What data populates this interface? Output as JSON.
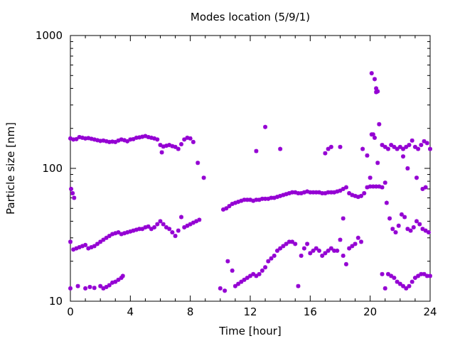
{
  "chart_data": {
    "type": "scatter",
    "title": "Modes location (5/9/1)",
    "xlabel": "Time [hour]",
    "ylabel": "Particle size [nm]",
    "xlim": [
      0,
      24
    ],
    "ylim": [
      10,
      1000
    ],
    "yscale": "log",
    "xticks": [
      "0",
      "4",
      "8",
      "12",
      "16",
      "20",
      "24"
    ],
    "yticks": [
      "10",
      "100",
      "1000"
    ],
    "grid": false,
    "marker_color": "#9400d3",
    "series": [
      {
        "points": [
          [
            0.0,
            168
          ],
          [
            0.2,
            165
          ],
          [
            0.4,
            166
          ],
          [
            0.6,
            172
          ],
          [
            0.8,
            170
          ],
          [
            1.0,
            168
          ],
          [
            1.2,
            169
          ],
          [
            1.4,
            167
          ],
          [
            1.6,
            165
          ],
          [
            1.8,
            163
          ],
          [
            2.0,
            161
          ],
          [
            2.2,
            162
          ],
          [
            2.4,
            160
          ],
          [
            2.6,
            158
          ],
          [
            2.8,
            159
          ],
          [
            3.0,
            158
          ],
          [
            3.2,
            162
          ],
          [
            3.4,
            165
          ],
          [
            3.6,
            163
          ],
          [
            3.8,
            160
          ],
          [
            4.0,
            165
          ],
          [
            4.2,
            166
          ],
          [
            4.4,
            170
          ],
          [
            4.6,
            171
          ],
          [
            4.8,
            173
          ],
          [
            5.0,
            175
          ],
          [
            5.2,
            172
          ],
          [
            5.4,
            170
          ],
          [
            5.6,
            168
          ],
          [
            5.8,
            165
          ],
          [
            6.0,
            150
          ],
          [
            6.1,
            132
          ],
          [
            6.2,
            146
          ],
          [
            6.4,
            148
          ],
          [
            6.6,
            150
          ],
          [
            6.8,
            147
          ],
          [
            7.0,
            145
          ],
          [
            7.2,
            140
          ],
          [
            7.4,
            152
          ],
          [
            7.6,
            165
          ],
          [
            7.8,
            170
          ],
          [
            8.0,
            168
          ],
          [
            8.2,
            158
          ],
          [
            8.5,
            110
          ],
          [
            8.9,
            85
          ],
          [
            0.0,
            28
          ],
          [
            0.2,
            24.5
          ],
          [
            0.4,
            25
          ],
          [
            0.6,
            25.5
          ],
          [
            0.8,
            26
          ],
          [
            1.0,
            26.5
          ],
          [
            1.2,
            25
          ],
          [
            1.4,
            25.5
          ],
          [
            1.6,
            26
          ],
          [
            1.8,
            27
          ],
          [
            2.0,
            28
          ],
          [
            2.2,
            29
          ],
          [
            2.4,
            30
          ],
          [
            2.6,
            31
          ],
          [
            2.8,
            32
          ],
          [
            3.0,
            32.5
          ],
          [
            3.2,
            33
          ],
          [
            3.4,
            32
          ],
          [
            3.6,
            32.5
          ],
          [
            3.8,
            33
          ],
          [
            4.0,
            33.5
          ],
          [
            4.2,
            34
          ],
          [
            4.4,
            34.5
          ],
          [
            4.6,
            35
          ],
          [
            4.8,
            35
          ],
          [
            5.0,
            36
          ],
          [
            5.2,
            36.5
          ],
          [
            5.4,
            35
          ],
          [
            5.6,
            36
          ],
          [
            5.8,
            38
          ],
          [
            6.0,
            40
          ],
          [
            6.2,
            38
          ],
          [
            6.4,
            36
          ],
          [
            6.6,
            35
          ],
          [
            6.8,
            33
          ],
          [
            7.0,
            31
          ],
          [
            7.2,
            34
          ],
          [
            7.4,
            43
          ],
          [
            7.6,
            36
          ],
          [
            7.8,
            37
          ],
          [
            8.0,
            38
          ],
          [
            8.2,
            39
          ],
          [
            8.4,
            40
          ],
          [
            8.6,
            41
          ],
          [
            0.05,
            70
          ],
          [
            0.15,
            65
          ],
          [
            0.25,
            60
          ],
          [
            0.0,
            12.5
          ],
          [
            0.5,
            13
          ],
          [
            1.0,
            12.5
          ],
          [
            1.3,
            12.8
          ],
          [
            1.6,
            12.6
          ],
          [
            2.0,
            13
          ],
          [
            2.2,
            12.5
          ],
          [
            2.4,
            12.8
          ],
          [
            2.6,
            13.2
          ],
          [
            2.8,
            13.8
          ],
          [
            3.0,
            14
          ],
          [
            3.2,
            14.5
          ],
          [
            3.4,
            15
          ],
          [
            3.5,
            15.5
          ],
          [
            10.2,
            49
          ],
          [
            10.4,
            50
          ],
          [
            10.6,
            52
          ],
          [
            10.8,
            54
          ],
          [
            11.0,
            55
          ],
          [
            11.2,
            56
          ],
          [
            11.4,
            57
          ],
          [
            11.6,
            58
          ],
          [
            11.8,
            58
          ],
          [
            12.0,
            58
          ],
          [
            12.2,
            57
          ],
          [
            12.4,
            58
          ],
          [
            12.6,
            58
          ],
          [
            12.8,
            59
          ],
          [
            13.0,
            59
          ],
          [
            13.2,
            59
          ],
          [
            13.4,
            60
          ],
          [
            13.6,
            60
          ],
          [
            13.8,
            61
          ],
          [
            14.0,
            62
          ],
          [
            14.2,
            63
          ],
          [
            14.4,
            64
          ],
          [
            14.6,
            65
          ],
          [
            14.8,
            66
          ],
          [
            15.0,
            66
          ],
          [
            15.2,
            65
          ],
          [
            15.4,
            65
          ],
          [
            15.6,
            66
          ],
          [
            15.8,
            67
          ],
          [
            16.0,
            66
          ],
          [
            16.2,
            66
          ],
          [
            16.4,
            66
          ],
          [
            16.6,
            66
          ],
          [
            16.8,
            65
          ],
          [
            17.0,
            65
          ],
          [
            17.2,
            66
          ],
          [
            17.4,
            66
          ],
          [
            17.6,
            66
          ],
          [
            17.8,
            67
          ],
          [
            18.0,
            68
          ],
          [
            18.2,
            70
          ],
          [
            18.4,
            72
          ],
          [
            18.6,
            65
          ],
          [
            18.8,
            63
          ],
          [
            19.0,
            62
          ],
          [
            19.2,
            61
          ],
          [
            19.4,
            62
          ],
          [
            19.6,
            65
          ],
          [
            19.8,
            72
          ],
          [
            20.0,
            73
          ],
          [
            20.2,
            73
          ],
          [
            20.4,
            73
          ],
          [
            20.6,
            73
          ],
          [
            20.8,
            72
          ],
          [
            21.0,
            78
          ],
          [
            10.0,
            12.5
          ],
          [
            10.3,
            12
          ],
          [
            10.5,
            20
          ],
          [
            10.8,
            17
          ],
          [
            11.0,
            13
          ],
          [
            11.2,
            13.5
          ],
          [
            11.4,
            14
          ],
          [
            11.6,
            14.5
          ],
          [
            11.8,
            15
          ],
          [
            12.0,
            15.5
          ],
          [
            12.2,
            16
          ],
          [
            12.4,
            15.5
          ],
          [
            12.6,
            16
          ],
          [
            12.8,
            17
          ],
          [
            13.0,
            18
          ],
          [
            13.2,
            20
          ],
          [
            13.4,
            21
          ],
          [
            13.6,
            22
          ],
          [
            13.8,
            24
          ],
          [
            14.0,
            25
          ],
          [
            14.2,
            26
          ],
          [
            14.4,
            27
          ],
          [
            14.6,
            28
          ],
          [
            14.8,
            28
          ],
          [
            15.0,
            27
          ],
          [
            15.2,
            13
          ],
          [
            15.4,
            22
          ],
          [
            15.6,
            25
          ],
          [
            15.8,
            27
          ],
          [
            16.0,
            23
          ],
          [
            16.2,
            24
          ],
          [
            16.4,
            25
          ],
          [
            16.6,
            24
          ],
          [
            16.8,
            22
          ],
          [
            17.0,
            23
          ],
          [
            17.2,
            24
          ],
          [
            17.4,
            25
          ],
          [
            17.6,
            24
          ],
          [
            17.8,
            24
          ],
          [
            18.0,
            29
          ],
          [
            18.2,
            22
          ],
          [
            18.4,
            19
          ],
          [
            18.6,
            25
          ],
          [
            18.8,
            26
          ],
          [
            19.0,
            27
          ],
          [
            19.2,
            30
          ],
          [
            19.4,
            28
          ],
          [
            12.4,
            135
          ],
          [
            13.0,
            205
          ],
          [
            14.0,
            140
          ],
          [
            17.0,
            130
          ],
          [
            17.2,
            140
          ],
          [
            17.4,
            145
          ],
          [
            18.0,
            145
          ],
          [
            18.2,
            42
          ],
          [
            19.5,
            140
          ],
          [
            19.8,
            125
          ],
          [
            20.0,
            85
          ],
          [
            20.1,
            180
          ],
          [
            20.2,
            180
          ],
          [
            20.3,
            170
          ],
          [
            20.4,
            400
          ],
          [
            20.5,
            380
          ],
          [
            20.6,
            215
          ],
          [
            20.8,
            150
          ],
          [
            21.0,
            145
          ],
          [
            21.2,
            140
          ],
          [
            21.4,
            150
          ],
          [
            21.6,
            145
          ],
          [
            21.8,
            140
          ],
          [
            22.0,
            145
          ],
          [
            22.2,
            140
          ],
          [
            22.4,
            145
          ],
          [
            22.6,
            150
          ],
          [
            22.8,
            162
          ],
          [
            23.0,
            145
          ],
          [
            23.2,
            140
          ],
          [
            23.4,
            150
          ],
          [
            23.6,
            160
          ],
          [
            23.8,
            155
          ],
          [
            24.0,
            140
          ],
          [
            20.1,
            520
          ],
          [
            20.3,
            470
          ],
          [
            20.4,
            375
          ],
          [
            21.1,
            55
          ],
          [
            21.3,
            42
          ],
          [
            21.5,
            35
          ],
          [
            21.7,
            33
          ],
          [
            21.9,
            37
          ],
          [
            22.1,
            45
          ],
          [
            22.3,
            43
          ],
          [
            22.5,
            35
          ],
          [
            22.7,
            34
          ],
          [
            22.9,
            36
          ],
          [
            23.1,
            40
          ],
          [
            23.3,
            38
          ],
          [
            23.5,
            35
          ],
          [
            23.7,
            34
          ],
          [
            23.9,
            33
          ],
          [
            20.8,
            16
          ],
          [
            21.0,
            12.5
          ],
          [
            21.2,
            16
          ],
          [
            21.4,
            15.5
          ],
          [
            21.6,
            15
          ],
          [
            21.8,
            14
          ],
          [
            22.0,
            13.5
          ],
          [
            22.2,
            13
          ],
          [
            22.4,
            12.5
          ],
          [
            22.6,
            13
          ],
          [
            22.8,
            14
          ],
          [
            23.0,
            15
          ],
          [
            23.2,
            15.5
          ],
          [
            23.4,
            16
          ],
          [
            23.6,
            16
          ],
          [
            23.8,
            15.5
          ],
          [
            24.0,
            15.5
          ],
          [
            23.5,
            70
          ],
          [
            23.7,
            72
          ],
          [
            22.5,
            100
          ],
          [
            22.2,
            123
          ],
          [
            20.5,
            110
          ],
          [
            23.1,
            85
          ]
        ]
      }
    ]
  }
}
